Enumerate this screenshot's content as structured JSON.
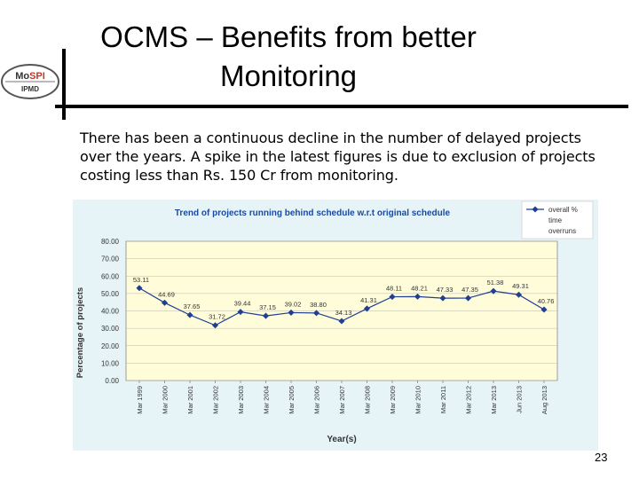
{
  "slide": {
    "title_line1": "OCMS – Benefits from better",
    "title_line2": "Monitoring",
    "body": "There has been a continuous decline in the number of delayed projects over the years. A spike in the latest figures is due to exclusion of projects costing less than Rs. 150 Cr from monitoring.",
    "page_number": "23"
  },
  "logo": {
    "top_text": "Mo",
    "top_text_accent": "SPI",
    "bottom_text": "IPMD",
    "accent_color": "#c0392b"
  },
  "colors": {
    "chart_bg": "#e6f4f8",
    "plot_bg": "#fffcd9",
    "series": "#1f3f94",
    "title_text": "#1a4aa0",
    "axis_text": "#333333"
  },
  "chart_data": {
    "type": "line",
    "title": "Trend of projects running behind schedule w.r.t original schedule",
    "xlabel": "Year(s)",
    "ylabel": "Percentage of projects",
    "ylim": [
      0,
      80
    ],
    "yticks": [
      "80.00",
      "70.00",
      "60.00",
      "50.00",
      "40.00",
      "30.00",
      "20.00",
      "10.00",
      "0.00"
    ],
    "grid": true,
    "legend": {
      "label_line1": "overall %",
      "label_line2": "time",
      "label_line3": "overruns",
      "position": "top-right"
    },
    "categories": [
      "Mar 1999",
      "Mar 2000",
      "Mar 2001",
      "Mar 2002",
      "Mar 2003",
      "Mar 2004",
      "Mar 2005",
      "Mar 2006",
      "Mar 2007",
      "Mar 2008",
      "Mar 2009",
      "Mar 2010",
      "Mar 2011",
      "Mar 2012",
      "Mar 2013",
      "Jun 2013",
      "Aug 2013"
    ],
    "series": [
      {
        "name": "overall % time overruns",
        "values": [
          53.11,
          44.69,
          37.65,
          31.72,
          39.44,
          37.15,
          39.02,
          38.8,
          34.13,
          41.31,
          48.11,
          48.21,
          47.33,
          47.35,
          51.38,
          49.31,
          40.76
        ],
        "labels": [
          "53.11",
          "44.69",
          "37.65",
          "31.72",
          "39.44",
          "37.15",
          "39.02",
          "38.80",
          "34.13",
          "41.31",
          "48.11",
          "48.21",
          "47.33",
          "47.35",
          "51.38",
          "49.31",
          "40.76"
        ]
      }
    ]
  }
}
